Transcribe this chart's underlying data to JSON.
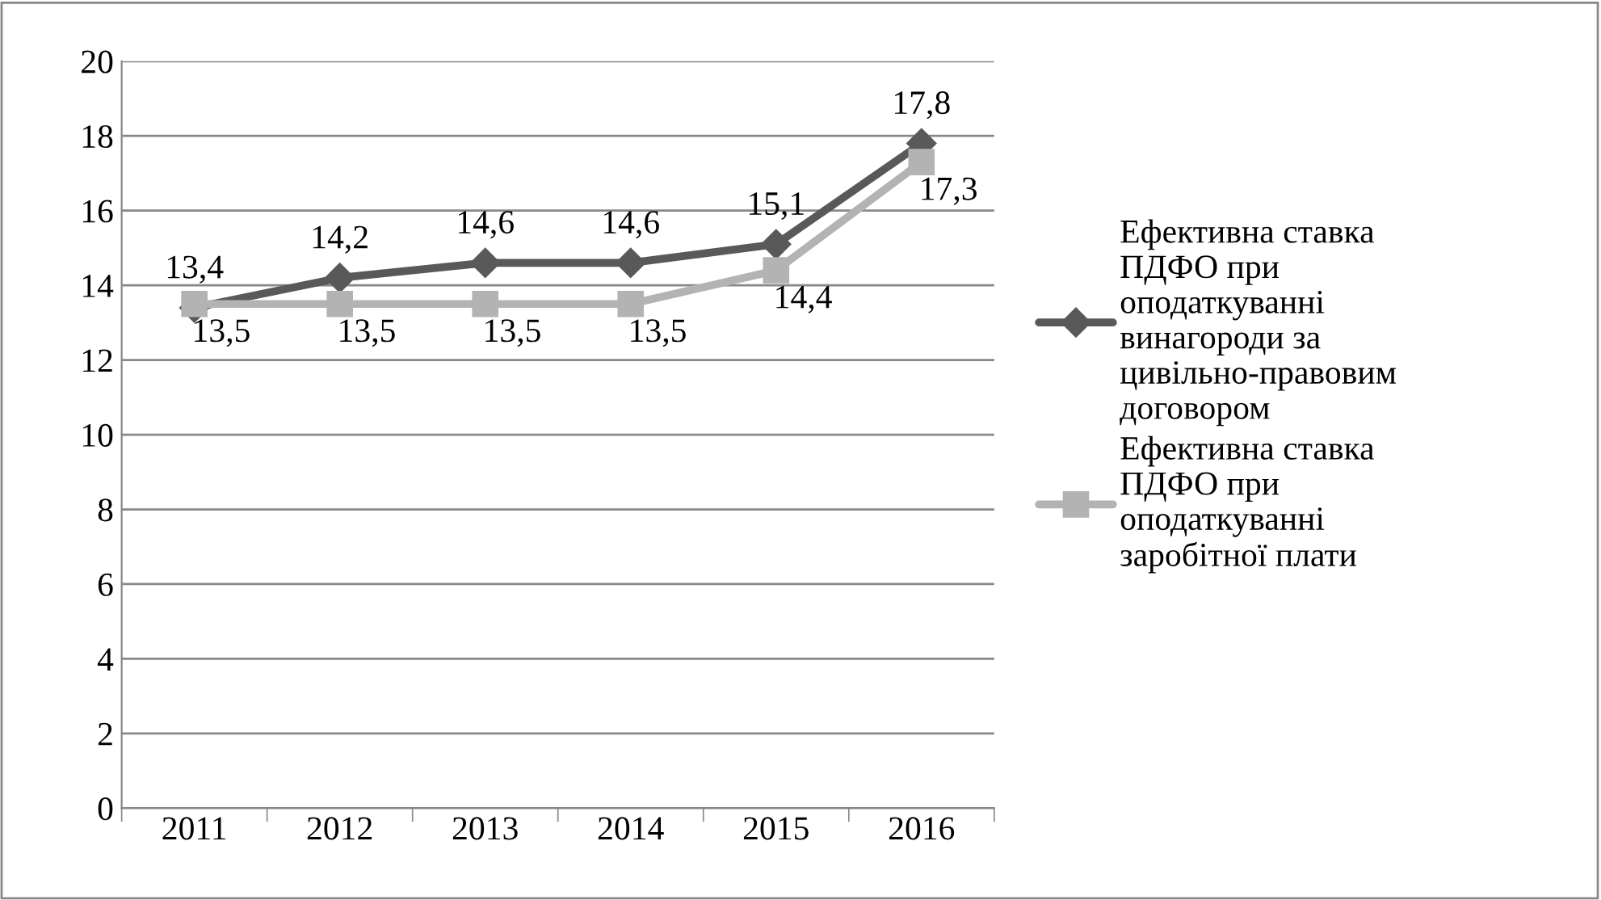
{
  "chart_data": {
    "type": "line",
    "categories": [
      "2011",
      "2012",
      "2013",
      "2014",
      "2015",
      "2016"
    ],
    "series": [
      {
        "name": "Ефективна ставка\nПДФО при\nоподаткуванні\nвинагороди за\nцивільно-правовим\nдоговором",
        "color": "#595959",
        "marker": "diamond",
        "values": [
          13.4,
          14.2,
          14.6,
          14.6,
          15.1,
          17.8
        ],
        "value_labels": [
          "13,4",
          "14,2",
          "14,6",
          "14,6",
          "15,1",
          "17,8"
        ]
      },
      {
        "name": "Ефективна ставка\nПДФО при\nоподаткуванні\nзаробітної плати",
        "color": "#b3b3b3",
        "marker": "square",
        "values": [
          13.5,
          13.5,
          13.5,
          13.5,
          14.4,
          17.3
        ],
        "value_labels": [
          "13,5",
          "13,5",
          "13,5",
          "13,5",
          "14,4",
          "17,3"
        ]
      }
    ],
    "ylim": [
      0,
      20
    ],
    "yticks": [
      0,
      2,
      4,
      6,
      8,
      10,
      12,
      14,
      16,
      18,
      20
    ],
    "grid": "y",
    "legend": "right",
    "line_style": "solid"
  }
}
